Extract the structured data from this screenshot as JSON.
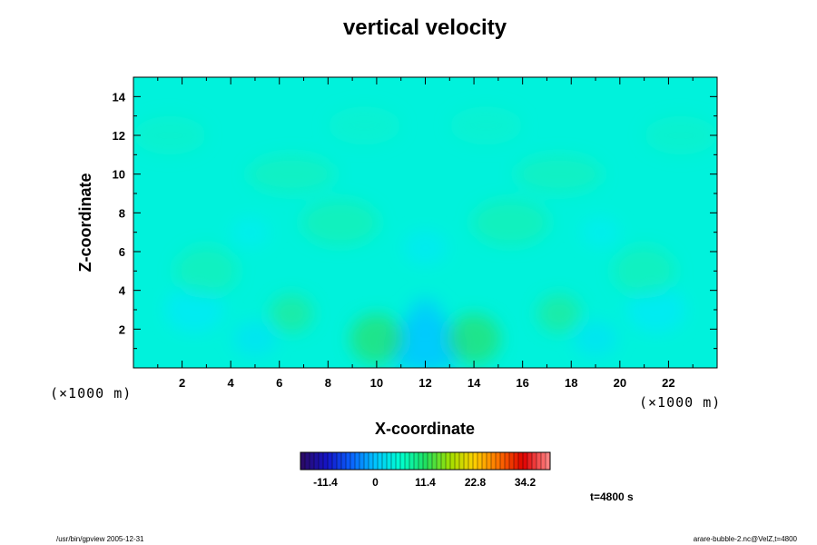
{
  "chart_data": {
    "type": "heatmap",
    "title": "vertical velocity",
    "xlabel": "X-coordinate",
    "ylabel": "Z-coordinate",
    "x_scale": "(×1000 m)",
    "z_scale": "(×1000 m)",
    "xlim": [
      0,
      24
    ],
    "ylim": [
      0,
      15
    ],
    "x_ticks": [
      2,
      4,
      6,
      8,
      10,
      12,
      14,
      16,
      18,
      20,
      22
    ],
    "y_ticks": [
      2,
      4,
      6,
      8,
      10,
      12,
      14
    ],
    "colorbar": {
      "labels": [
        "-11.4",
        "0",
        "11.4",
        "22.8",
        "34.2"
      ],
      "label_values": [
        -11.4,
        0,
        11.4,
        22.8,
        34.2
      ],
      "range": [
        -17.1,
        39.9
      ],
      "colors": [
        "#2a0a6a",
        "#1414c8",
        "#0a64ff",
        "#00c8ff",
        "#00ffd0",
        "#20e060",
        "#a0e000",
        "#ffd000",
        "#ff7000",
        "#e00000",
        "#ff8080"
      ]
    },
    "time_label": "t=4800 s",
    "field_summary": "near-zero vertical velocity field with weak positive updrafts around x≈10 and x≈14 (z≈1–2) and weak negative downdraft centered at x≈12, pattern mirrored about x≈12"
  },
  "footer": {
    "left": "/usr/bin/gpview 2005-12-31",
    "right": "arare-bubble-2.nc@VelZ,t=4800"
  }
}
